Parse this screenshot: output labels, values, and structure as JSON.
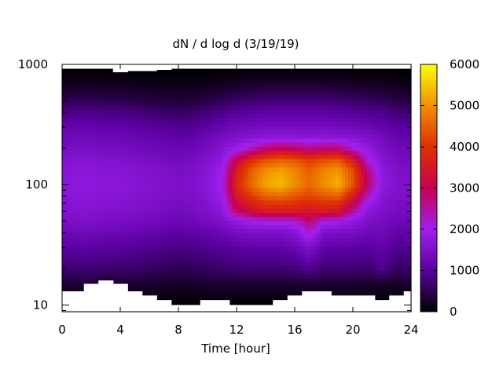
{
  "chart_data": {
    "type": "heatmap",
    "title": "dN / d log d (3/19/19)",
    "xlabel": "Time [hour]",
    "ylabel": "",
    "xlim": [
      0,
      24
    ],
    "ylim": [
      8.8,
      1000
    ],
    "y_scale": "log",
    "x_ticks": [
      0,
      4,
      8,
      12,
      16,
      20,
      24
    ],
    "x_tick_labels": [
      "0",
      "4",
      "8",
      "12",
      "16",
      "20",
      "24"
    ],
    "y_ticks": [
      10,
      100,
      1000
    ],
    "y_tick_labels": [
      "10",
      "100",
      "1000"
    ],
    "colorbar": {
      "range": [
        0,
        6000
      ],
      "ticks": [
        0,
        1000,
        2000,
        3000,
        4000,
        5000,
        6000
      ],
      "tick_labels": [
        "0",
        "1000",
        "2000",
        "3000",
        "4000",
        "5000",
        "6000"
      ],
      "palette": [
        "#000000",
        "#5a00a0",
        "#a020f0",
        "#c80050",
        "#e03000",
        "#f09000",
        "#ffff00"
      ]
    },
    "x": [
      0,
      1,
      2,
      3,
      4,
      5,
      6,
      7,
      8,
      9,
      10,
      11,
      12,
      13,
      14,
      15,
      16,
      17,
      18,
      19,
      20,
      21,
      22,
      23,
      24
    ],
    "y": [
      10,
      15,
      20,
      30,
      40,
      50,
      60,
      80,
      100,
      130,
      160,
      200,
      250,
      300,
      400,
      500,
      600,
      800,
      900
    ],
    "values": [
      [
        0,
        0,
        0,
        0,
        0,
        0,
        0,
        0,
        0,
        0,
        0,
        0,
        0,
        0,
        0,
        0,
        0,
        0,
        0,
        0,
        0,
        0,
        0,
        0,
        0
      ],
      [
        300,
        350,
        350,
        300,
        300,
        300,
        300,
        250,
        250,
        250,
        300,
        300,
        300,
        300,
        300,
        300,
        300,
        300,
        300,
        300,
        300,
        250,
        250,
        250,
        300
      ],
      [
        700,
        700,
        700,
        650,
        650,
        650,
        600,
        550,
        500,
        550,
        600,
        650,
        700,
        700,
        700,
        700,
        750,
        900,
        700,
        700,
        700,
        650,
        900,
        600,
        650
      ],
      [
        1000,
        1050,
        1050,
        1000,
        1000,
        950,
        900,
        850,
        800,
        850,
        900,
        950,
        1050,
        1100,
        1100,
        1100,
        1200,
        1500,
        1100,
        1100,
        1050,
        1000,
        1100,
        900,
        900
      ],
      [
        1250,
        1300,
        1300,
        1250,
        1250,
        1200,
        1150,
        1100,
        1050,
        1100,
        1150,
        1250,
        1400,
        1500,
        1500,
        1500,
        1600,
        2200,
        1500,
        1450,
        1400,
        1300,
        1300,
        1100,
        1100
      ],
      [
        1450,
        1500,
        1500,
        1450,
        1450,
        1400,
        1350,
        1300,
        1250,
        1300,
        1400,
        1500,
        1800,
        2000,
        2100,
        2100,
        2200,
        2800,
        2100,
        2000,
        1800,
        1500,
        1400,
        1300,
        1250
      ],
      [
        1550,
        1600,
        1600,
        1550,
        1550,
        1500,
        1450,
        1400,
        1350,
        1400,
        1500,
        1700,
        2800,
        3200,
        3500,
        3500,
        3500,
        3400,
        3500,
        3400,
        2500,
        1700,
        1500,
        1400,
        1350
      ],
      [
        1650,
        1700,
        1700,
        1650,
        1650,
        1600,
        1550,
        1500,
        1450,
        1500,
        1650,
        1900,
        3500,
        4100,
        4500,
        4600,
        4400,
        4200,
        4400,
        4500,
        3600,
        2300,
        1650,
        1500,
        1450
      ],
      [
        1700,
        1750,
        1750,
        1700,
        1700,
        1650,
        1600,
        1550,
        1500,
        1550,
        1700,
        2000,
        3800,
        4600,
        5200,
        5400,
        5000,
        4600,
        5000,
        5300,
        4400,
        2900,
        1800,
        1550,
        1500
      ],
      [
        1650,
        1700,
        1700,
        1650,
        1650,
        1600,
        1550,
        1500,
        1450,
        1500,
        1650,
        1950,
        3600,
        4500,
        5000,
        5200,
        4900,
        4500,
        4900,
        5100,
        4300,
        2700,
        1750,
        1500,
        1450
      ],
      [
        1550,
        1600,
        1600,
        1550,
        1550,
        1500,
        1450,
        1400,
        1350,
        1400,
        1550,
        1800,
        3000,
        3900,
        4300,
        4500,
        4400,
        4100,
        4300,
        4400,
        3600,
        2200,
        1650,
        1400,
        1350
      ],
      [
        1400,
        1450,
        1450,
        1400,
        1400,
        1350,
        1300,
        1250,
        1200,
        1250,
        1400,
        1600,
        1900,
        2300,
        2800,
        3000,
        2900,
        2700,
        2800,
        2800,
        2200,
        1800,
        1500,
        1300,
        1250
      ],
      [
        1250,
        1300,
        1300,
        1250,
        1250,
        1200,
        1150,
        1100,
        1050,
        1100,
        1250,
        1400,
        1500,
        1600,
        1700,
        1700,
        1700,
        1650,
        1700,
        1650,
        1600,
        1500,
        1350,
        1150,
        1100
      ],
      [
        1100,
        1150,
        1150,
        1100,
        1100,
        1050,
        1000,
        950,
        900,
        950,
        1050,
        1200,
        1300,
        1350,
        1400,
        1400,
        1400,
        1400,
        1400,
        1350,
        1300,
        1250,
        1150,
        1000,
        950
      ],
      [
        800,
        850,
        850,
        800,
        800,
        750,
        700,
        650,
        600,
        650,
        750,
        850,
        950,
        1000,
        1050,
        1050,
        1050,
        1050,
        1050,
        1000,
        950,
        900,
        850,
        750,
        700
      ],
      [
        500,
        550,
        550,
        500,
        500,
        450,
        400,
        380,
        350,
        380,
        450,
        550,
        650,
        700,
        750,
        750,
        750,
        750,
        750,
        700,
        650,
        600,
        550,
        450,
        400
      ],
      [
        300,
        320,
        320,
        300,
        300,
        280,
        260,
        240,
        220,
        240,
        280,
        330,
        400,
        450,
        480,
        480,
        480,
        480,
        480,
        450,
        400,
        380,
        340,
        280,
        250
      ],
      [
        80,
        90,
        90,
        80,
        80,
        70,
        60,
        55,
        50,
        55,
        70,
        90,
        110,
        130,
        140,
        140,
        140,
        140,
        140,
        130,
        110,
        100,
        90,
        70,
        60
      ],
      [
        0,
        0,
        0,
        0,
        0,
        0,
        0,
        0,
        0,
        0,
        0,
        0,
        0,
        0,
        0,
        0,
        0,
        0,
        0,
        0,
        0,
        0,
        0,
        0,
        0
      ]
    ],
    "no_data_below": [
      13,
      13,
      15,
      16,
      15,
      13,
      12,
      11,
      10,
      10,
      11,
      11,
      10,
      10,
      10,
      11,
      12,
      13,
      13,
      12,
      12,
      12,
      11,
      12,
      13
    ],
    "no_data_above": [
      920,
      920,
      920,
      920,
      860,
      880,
      880,
      900,
      920,
      920,
      920,
      920,
      920,
      920,
      920,
      920,
      920,
      920,
      920,
      920,
      920,
      920,
      920,
      920,
      920
    ],
    "grid": false,
    "legend": "colorbar-right"
  }
}
